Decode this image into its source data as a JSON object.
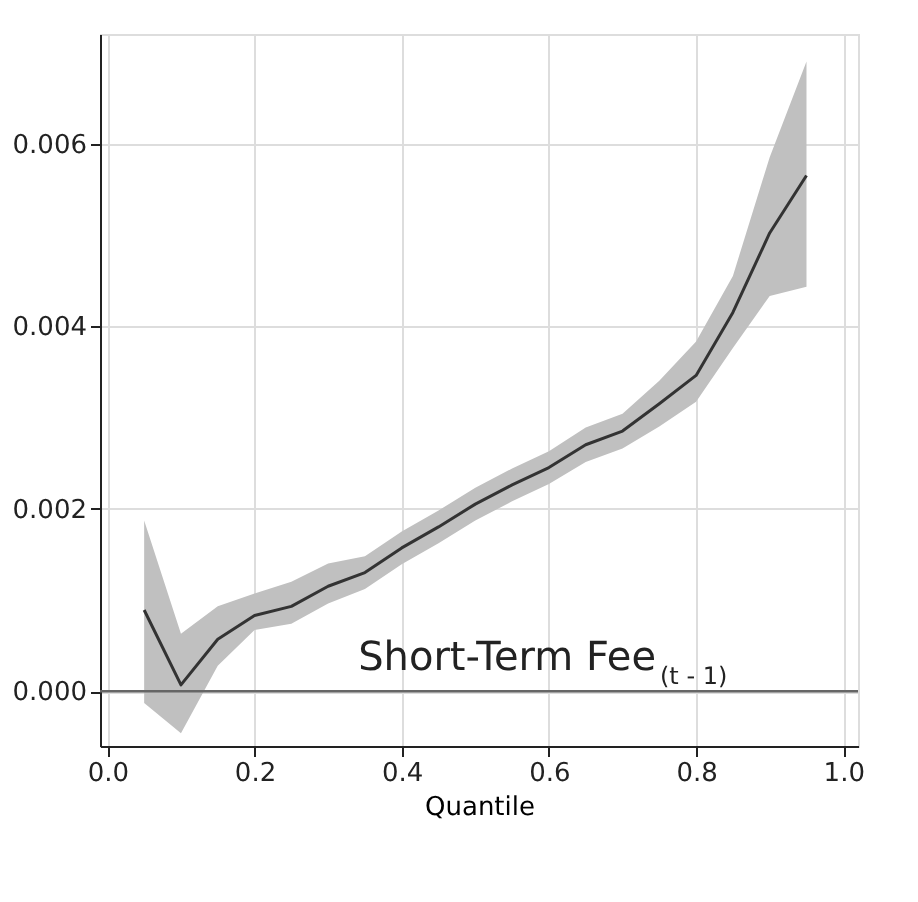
{
  "chart_data": {
    "type": "line",
    "xlabel": "Quantile",
    "annotations": [
      "Short-Term Fee$_{(t - 1)}$"
    ],
    "x": [
      0.05,
      0.1,
      0.15,
      0.2,
      0.25,
      0.3,
      0.35,
      0.4,
      0.45,
      0.5,
      0.55,
      0.6,
      0.65,
      0.7,
      0.75,
      0.8,
      0.85,
      0.9,
      0.95
    ],
    "series": [
      {
        "color": "#333333",
        "values": [
          0.00089,
          7e-05,
          0.00057,
          0.00083,
          0.00093,
          0.00115,
          0.0013,
          0.00157,
          0.0018,
          0.00205,
          0.00226,
          0.00245,
          0.0027,
          0.00285,
          0.00315,
          0.00346,
          0.00415,
          0.00502,
          0.00565
        ],
        "lower": [
          -0.00013,
          -0.00046,
          0.00028,
          0.00067,
          0.00074,
          0.00096,
          0.00112,
          0.00139,
          0.00162,
          0.00187,
          0.00208,
          0.00227,
          0.00251,
          0.00266,
          0.0029,
          0.00317,
          0.00376,
          0.00433,
          0.00443
        ],
        "upper": [
          0.00187,
          0.00063,
          0.00093,
          0.00107,
          0.0012,
          0.0014,
          0.00148,
          0.00175,
          0.00198,
          0.00223,
          0.00244,
          0.00263,
          0.00289,
          0.00304,
          0.0034,
          0.00383,
          0.00455,
          0.00585,
          0.0069
        ]
      }
    ],
    "xlim": [
      -0.01,
      1.02
    ],
    "ylim": [
      -0.0006,
      0.0072
    ],
    "xticks": [
      {
        "value": 0,
        "label": "0.0"
      },
      {
        "value": 0.2,
        "label": "0.2"
      },
      {
        "value": 0.4,
        "label": "0.4"
      },
      {
        "value": 0.6,
        "label": "0.6"
      },
      {
        "value": 0.8,
        "label": "0.8"
      },
      {
        "value": 1,
        "label": "1.0"
      }
    ],
    "yticks": [
      {
        "value": 0,
        "label": "0.000"
      },
      {
        "value": 0.002,
        "label": "0.002"
      },
      {
        "value": 0.004,
        "label": "0.004"
      },
      {
        "value": 0.006,
        "label": "0.006"
      }
    ],
    "ref_lines": [
      {
        "axis": "y",
        "value": 0,
        "color": "#666666"
      }
    ],
    "grid": true,
    "marker": "none",
    "line_style": "solid"
  }
}
